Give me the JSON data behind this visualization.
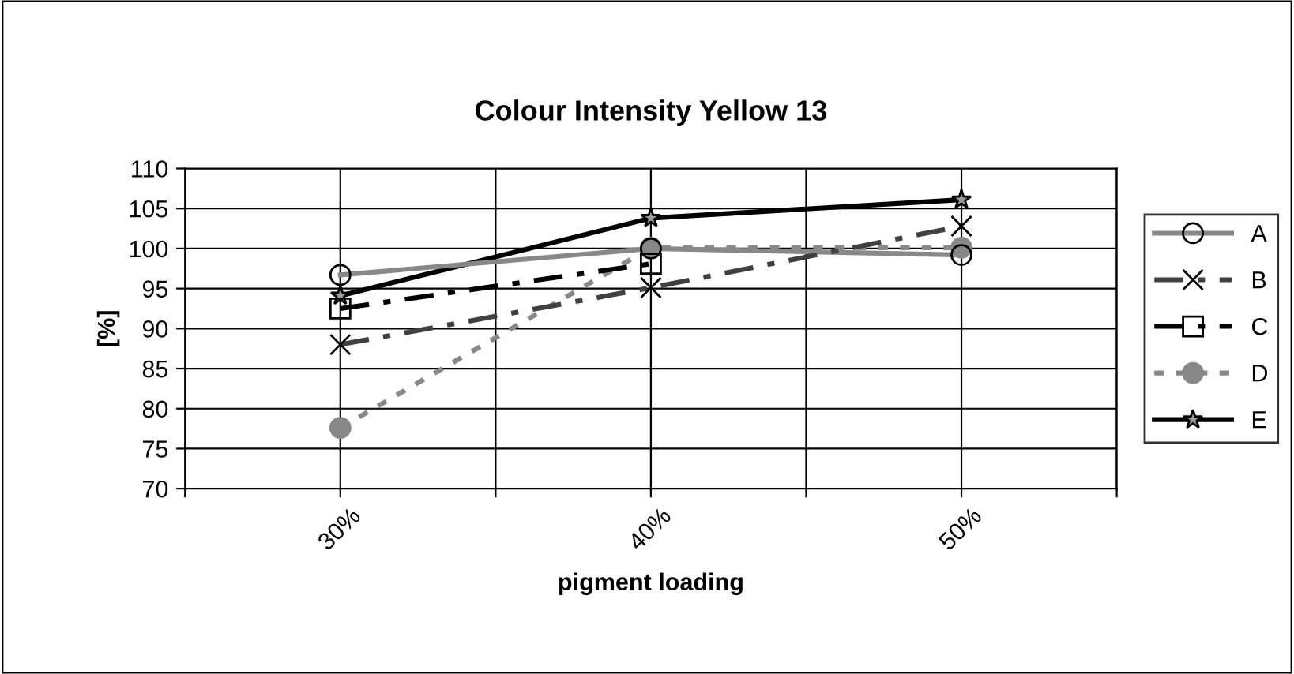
{
  "chart_data": {
    "type": "line",
    "title": "Colour Intensity Yellow 13",
    "xlabel": "pigment loading",
    "ylabel": "[%]",
    "x": [
      30,
      40,
      50
    ],
    "xlim": [
      25,
      55
    ],
    "xticks": [
      {
        "value": 25,
        "label": null
      },
      {
        "value": 30,
        "label": "30%"
      },
      {
        "value": 35,
        "label": null
      },
      {
        "value": 40,
        "label": "40%"
      },
      {
        "value": 45,
        "label": null
      },
      {
        "value": 50,
        "label": "50%"
      },
      {
        "value": 55,
        "label": null
      }
    ],
    "ylim": [
      70,
      110
    ],
    "yticks": [
      70,
      75,
      80,
      85,
      90,
      95,
      100,
      105,
      110
    ],
    "grid": true,
    "legend": "right",
    "series": [
      {
        "name": "A",
        "color": "#888888",
        "values": [
          96.7,
          100,
          99.2
        ],
        "marker": "circle",
        "line_style": "solid"
      },
      {
        "name": "B",
        "color": "#404040",
        "values": [
          88.0,
          95.1,
          102.8
        ],
        "marker": "cross",
        "line_style": "dashed"
      },
      {
        "name": "C",
        "color": "#000000",
        "values": [
          92.5,
          98.1,
          null
        ],
        "marker": "square",
        "line_style": "dashed"
      },
      {
        "name": "D",
        "color": "#888888",
        "values": [
          77.6,
          100.1,
          100.1
        ],
        "marker": "circle",
        "line_style": "dotted"
      },
      {
        "name": "E",
        "color": "#000000",
        "values": [
          94.1,
          103.8,
          106.1
        ],
        "marker": "star",
        "line_style": "solid"
      }
    ]
  }
}
